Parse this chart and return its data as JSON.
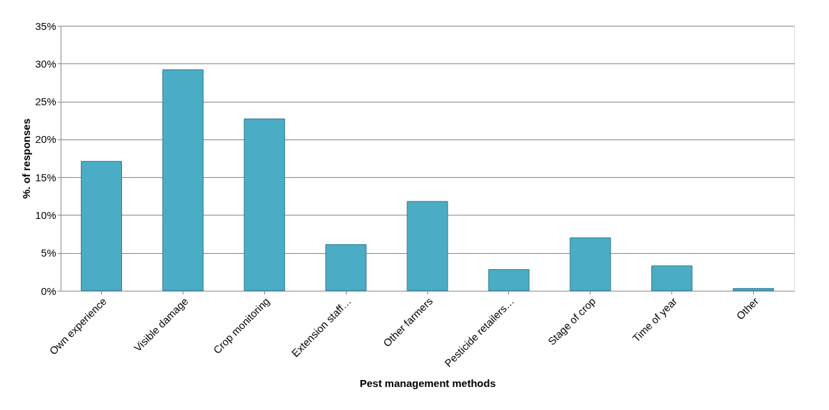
{
  "chart_data": {
    "type": "bar",
    "xlabel": "Pest management methods",
    "ylabel": "%. of responses",
    "categories": [
      "Own experience",
      "Visible damage",
      "Crop monitoring",
      "Extension staff…",
      "Other farmers",
      "Pesticide retailers…",
      "Stage of crop",
      "Time of year",
      "Other"
    ],
    "values": [
      17.1,
      29.2,
      22.7,
      6.1,
      11.8,
      2.8,
      7.0,
      3.3,
      0.3
    ],
    "color": "#4bacc6",
    "ylim": [
      0,
      35
    ],
    "yticks": [
      {
        "value": 0,
        "label": "0%"
      },
      {
        "value": 5,
        "label": "5%"
      },
      {
        "value": 10,
        "label": "10%"
      },
      {
        "value": 15,
        "label": "15%"
      },
      {
        "value": 20,
        "label": "20%"
      },
      {
        "value": 25,
        "label": "25%"
      },
      {
        "value": 30,
        "label": "30%"
      },
      {
        "value": 35,
        "label": "35%"
      }
    ],
    "grid": "y"
  }
}
